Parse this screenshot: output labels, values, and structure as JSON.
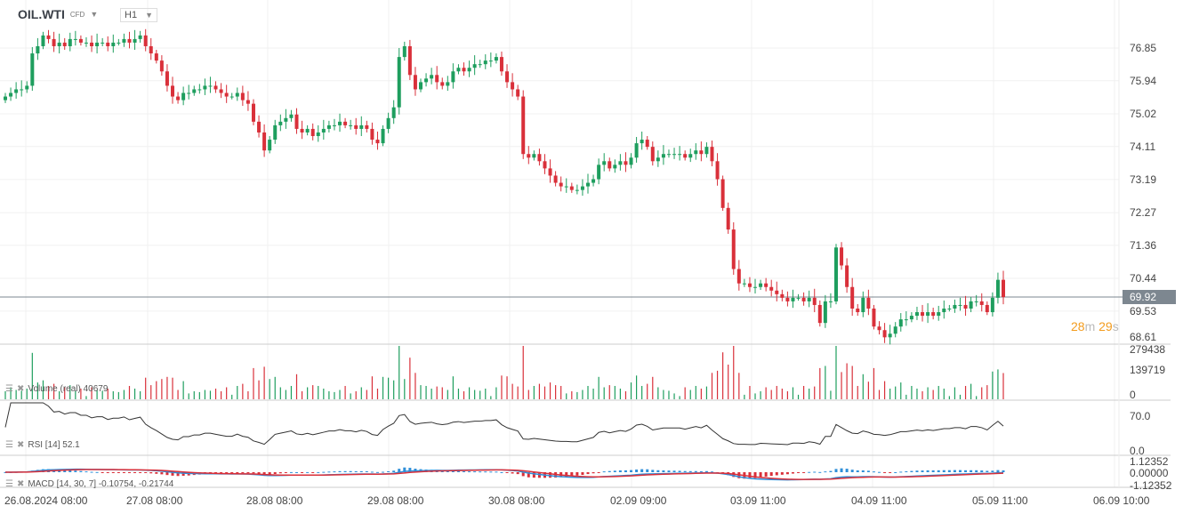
{
  "header": {
    "symbol": "OIL.WTI",
    "type": "CFD",
    "timeframe": "H1"
  },
  "current_price": "69.92",
  "countdown": {
    "min": "28",
    "min_unit": "m",
    "sec": "29",
    "sec_unit": "s"
  },
  "indicators": {
    "volume": "Volume  (real)  40679",
    "rsi": "RSI  [14]  52.1",
    "macd": "MACD  [14,  30,  7]  -0.10754,  -0.21744"
  },
  "colors": {
    "up": "#1e9e5e",
    "down": "#d9303a",
    "rsi": "#333333",
    "macd": "#2e8fd9",
    "signal": "#d9303a"
  },
  "chart_data": {
    "type": "candlestick",
    "title": "OIL.WTI H1",
    "price_axis": [
      "76.85",
      "75.94",
      "75.02",
      "74.11",
      "73.19",
      "72.27",
      "71.36",
      "70.44",
      "69.53",
      "68.61"
    ],
    "ylim": [
      68.61,
      76.85
    ],
    "volume_axis": [
      "279438",
      "139719",
      "0"
    ],
    "rsi_axis": [
      "70.0",
      "0.0"
    ],
    "macd_axis": [
      "1.12352",
      "0.00000",
      "-1.12352"
    ],
    "x_labels": [
      "26.08.2024  08:00",
      "27.08  08:00",
      "28.08  08:00",
      "29.08  08:00",
      "30.08  08:00",
      "02.09  09:00",
      "03.09  11:00",
      "04.09  11:00",
      "05.09  11:00",
      "06.09  10:00"
    ],
    "closes": [
      75.5,
      75.6,
      75.7,
      75.7,
      75.8,
      76.7,
      76.9,
      77.2,
      77.1,
      76.9,
      77.0,
      76.9,
      77.1,
      77.1,
      77.0,
      77.0,
      76.9,
      77.0,
      77.0,
      76.9,
      77.0,
      77.0,
      77.1,
      77.0,
      77.1,
      77.2,
      76.9,
      76.7,
      76.5,
      76.2,
      75.8,
      75.5,
      75.4,
      75.6,
      75.6,
      75.7,
      75.7,
      75.8,
      75.8,
      75.7,
      75.6,
      75.5,
      75.5,
      75.6,
      75.4,
      75.3,
      74.8,
      74.5,
      74.0,
      74.3,
      74.7,
      74.8,
      74.9,
      75.0,
      74.6,
      74.5,
      74.6,
      74.4,
      74.5,
      74.6,
      74.7,
      74.7,
      74.8,
      74.7,
      74.7,
      74.6,
      74.7,
      74.6,
      74.3,
      74.2,
      74.6,
      74.9,
      75.2,
      76.6,
      76.9,
      76.1,
      75.7,
      75.9,
      76.0,
      76.1,
      75.9,
      75.8,
      75.9,
      76.2,
      76.3,
      76.2,
      76.3,
      76.4,
      76.4,
      76.5,
      76.5,
      76.6,
      76.2,
      75.9,
      75.7,
      75.5,
      73.9,
      73.8,
      73.9,
      73.7,
      73.5,
      73.3,
      73.1,
      73.0,
      73.0,
      72.9,
      72.9,
      73.0,
      73.1,
      73.2,
      73.6,
      73.7,
      73.5,
      73.6,
      73.7,
      73.6,
      73.8,
      74.2,
      74.3,
      74.1,
      73.7,
      73.8,
      73.9,
      73.9,
      73.9,
      73.9,
      73.8,
      73.9,
      74.0,
      73.9,
      74.1,
      73.7,
      73.2,
      72.4,
      71.8,
      70.7,
      70.3,
      70.3,
      70.2,
      70.2,
      70.3,
      70.2,
      70.1,
      70.0,
      69.9,
      69.8,
      69.9,
      69.9,
      69.8,
      69.9,
      69.7,
      69.2,
      69.8,
      69.8,
      71.3,
      70.8,
      70.2,
      69.6,
      69.5,
      69.9,
      69.6,
      69.1,
      69.0,
      68.8,
      68.9,
      69.1,
      69.3,
      69.3,
      69.4,
      69.5,
      69.4,
      69.5,
      69.4,
      69.5,
      69.6,
      69.6,
      69.7,
      69.7,
      69.6,
      69.8,
      69.8,
      69.7,
      69.5,
      69.9,
      70.4,
      69.92
    ]
  }
}
